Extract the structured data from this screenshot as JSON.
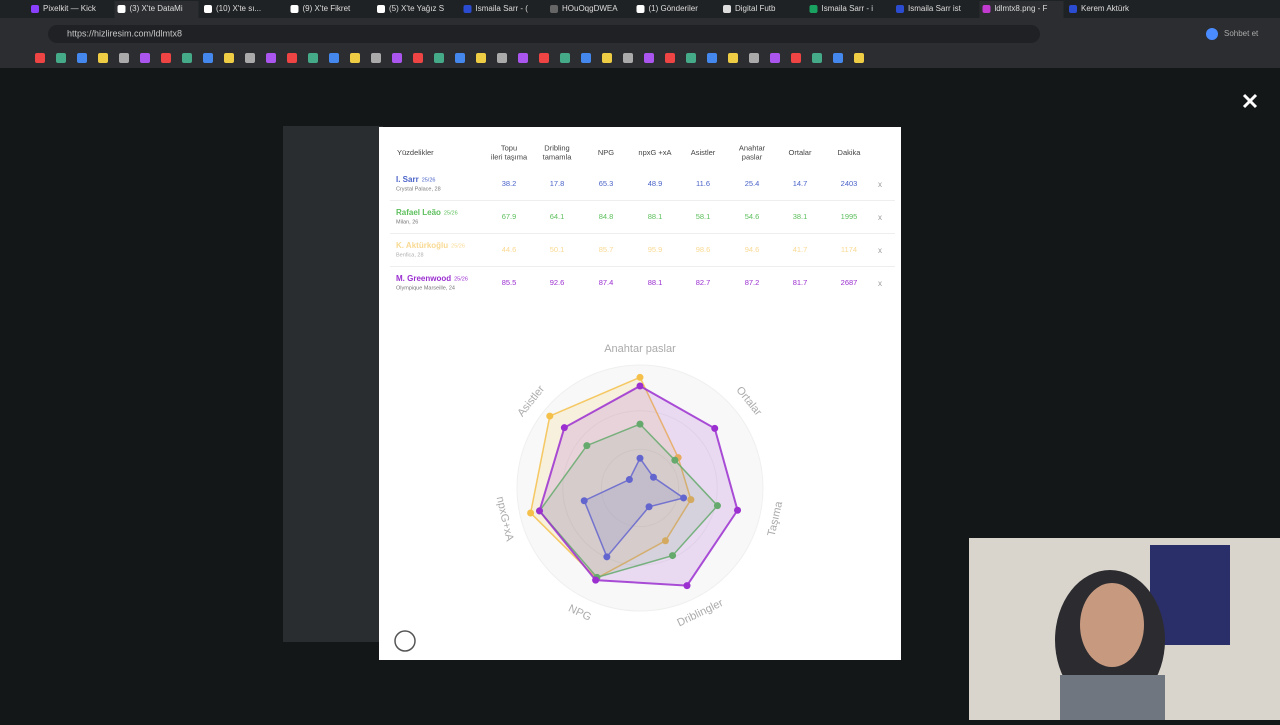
{
  "browser": {
    "tabs": [
      "Pixelkit — Kick",
      "(3) X'te DataMi",
      "(10) X'te sı...",
      "(9) X'te Fikret",
      "(5) X'te Yağız S",
      "Ismaila Sarr - (",
      "HOuOqgDWEA",
      "(1) Gönderiler",
      "Digital Futb",
      "Ismaila Sarr - i",
      "Ismaila Sarr ist",
      "ldlmtx8.png - F",
      "Kerem Aktürk"
    ],
    "url": "https://hizliresim.com/ldlmtx8",
    "chat_button": "Sohbet et"
  },
  "table": {
    "headers": [
      "Yüzdelikler",
      "Topu ileri taşıma",
      "Dribling tamamla",
      "NPG",
      "npxG +xA",
      "Asistler",
      "Anahtar paslar",
      "Ortalar",
      "Dakika"
    ],
    "remove": "x",
    "rows": [
      {
        "name": "I. Sarr",
        "season": "25/26",
        "club": "Crystal Palace, 28",
        "color": "#4a63c9",
        "values": [
          38.2,
          17.8,
          65.3,
          48.9,
          11.6,
          25.4,
          14.7,
          2403
        ]
      },
      {
        "name": "Rafael Leão",
        "season": "25/26",
        "club": "Milan, 26",
        "color": "#5cbf5c",
        "values": [
          67.9,
          64.1,
          84.8,
          88.1,
          58.1,
          54.6,
          38.1,
          1995
        ]
      },
      {
        "name": "K. Aktürkoğlu",
        "season": "25/26",
        "club": "Benfica, 28",
        "color": "#f5c04a",
        "values": [
          44.6,
          50.1,
          85.7,
          95.9,
          98.6,
          94.6,
          41.7,
          1174
        ]
      },
      {
        "name": "M. Greenwood",
        "season": "25/26",
        "club": "Olympique Marseille, 24",
        "color": "#9b2fd0",
        "values": [
          85.5,
          92.6,
          87.4,
          88.1,
          82.7,
          87.2,
          81.7,
          2687
        ]
      }
    ]
  },
  "chart_data": {
    "type": "radar",
    "axes": [
      "Anahtar paslar",
      "Ortalar",
      "Taşıma",
      "Driblingler",
      "NPG",
      "npxG+xA",
      "Asistler"
    ],
    "rlim": [
      0,
      100
    ],
    "series": [
      {
        "name": "I. Sarr",
        "color": "#5a6fcf",
        "values": [
          25.4,
          14.7,
          38.2,
          17.8,
          65.3,
          48.9,
          11.6
        ]
      },
      {
        "name": "Rafael Leão",
        "color": "#5cbf5c",
        "values": [
          54.6,
          38.1,
          67.9,
          64.1,
          84.8,
          88.1,
          58.1
        ]
      },
      {
        "name": "K. Aktürkoğlu",
        "color": "#f5c04a",
        "values": [
          94.6,
          41.7,
          44.6,
          50.1,
          85.7,
          95.9,
          98.6
        ]
      },
      {
        "name": "M. Greenwood",
        "color": "#9b2fd0",
        "values": [
          87.2,
          81.7,
          85.5,
          92.6,
          87.4,
          88.1,
          82.7
        ]
      }
    ]
  }
}
